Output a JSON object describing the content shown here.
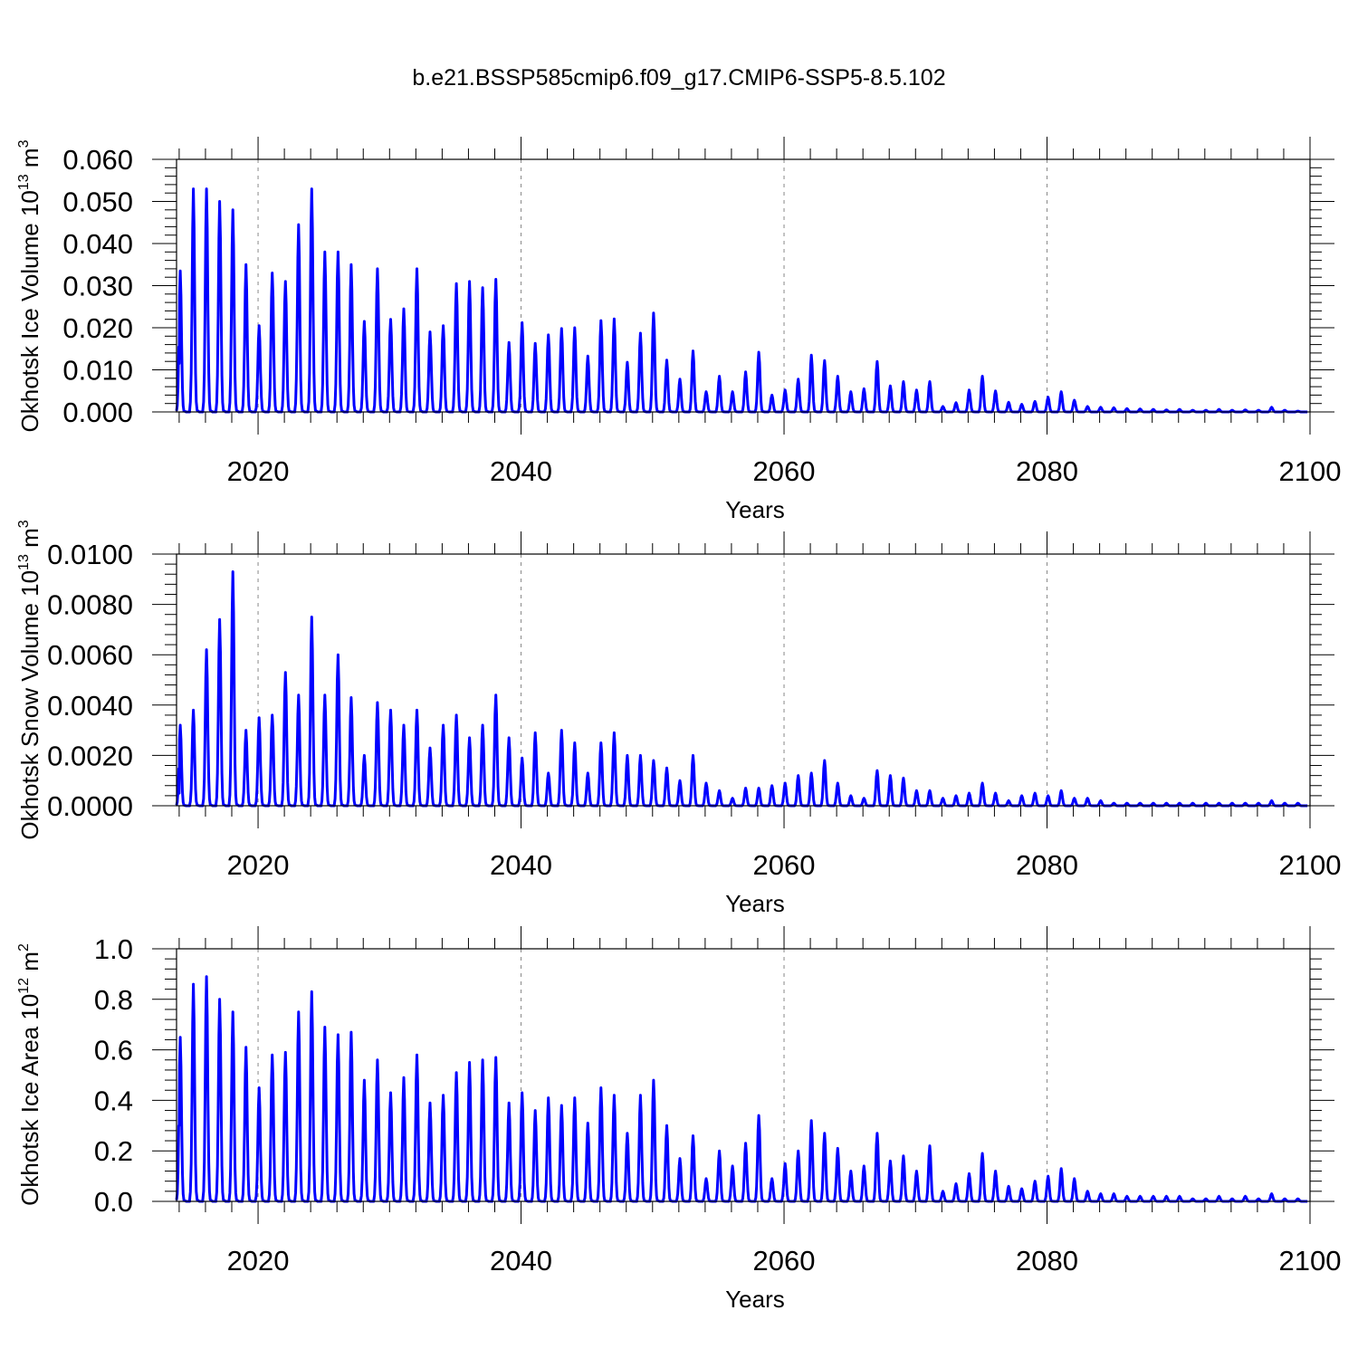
{
  "title": "b.e21.BSSP585cmip6.f09_g17.CMIP6-SSP5-8.5.102",
  "chart_data": [
    {
      "type": "line",
      "xlabel": "Years",
      "ylabel": "Okhotsk Ice Volume 10",
      "ylabel_exp": "13",
      "ylabel_unit": " m",
      "ylabel_unit_exp": "3",
      "xlim": [
        2013.8,
        2100
      ],
      "ylim": [
        0,
        0.06
      ],
      "xticks": [
        "2020",
        "2040",
        "2060",
        "2080",
        "2100"
      ],
      "yticks": [
        "0.000",
        "0.010",
        "0.020",
        "0.030",
        "0.040",
        "0.050",
        "0.060"
      ],
      "grid": "dashed vertical at major x ticks",
      "color": "#0000ff",
      "start_year": 2014,
      "start_value": 0.0115,
      "series": [
        {
          "peaks": [
            0.0335,
            0.053,
            0.053,
            0.05,
            0.048,
            0.035,
            0.0205,
            0.033,
            0.031,
            0.0445,
            0.053,
            0.038,
            0.038,
            0.035,
            0.0215,
            0.034,
            0.022,
            0.0245,
            0.034,
            0.019,
            0.0205,
            0.0305,
            0.031,
            0.0295,
            0.0315,
            0.0165,
            0.0212,
            0.0163,
            0.0183,
            0.0198,
            0.02,
            0.0133,
            0.0217,
            0.0221,
            0.0118,
            0.0187,
            0.0235,
            0.0123,
            0.0078,
            0.0145,
            0.0048,
            0.0085,
            0.0048,
            0.0095,
            0.0142,
            0.004,
            0.0052,
            0.0078,
            0.0135,
            0.0122,
            0.0085,
            0.0048,
            0.0055,
            0.012,
            0.0062,
            0.0072,
            0.0052,
            0.0072,
            0.0013,
            0.0022,
            0.0052,
            0.0085,
            0.005,
            0.0023,
            0.0018,
            0.0025,
            0.0035,
            0.0048,
            0.0028,
            0.0013,
            0.0011,
            0.001,
            0.0008,
            0.0007,
            0.0006,
            0.0005,
            0.0006,
            0.0004,
            0.0004,
            0.0006,
            0.0004,
            0.0005,
            0.0004,
            0.0011,
            0.0004,
            0.0002
          ]
        }
      ]
    },
    {
      "type": "line",
      "xlabel": "Years",
      "ylabel": "Okhotsk Snow Volume 10",
      "ylabel_exp": "13",
      "ylabel_unit": " m",
      "ylabel_unit_exp": "3",
      "xlim": [
        2013.8,
        2100
      ],
      "ylim": [
        0,
        0.01
      ],
      "xticks": [
        "2020",
        "2040",
        "2060",
        "2080",
        "2100"
      ],
      "yticks": [
        "0.0000",
        "0.0020",
        "0.0040",
        "0.0060",
        "0.0080",
        "0.0100"
      ],
      "grid": "dashed vertical at major x ticks",
      "color": "#0000ff",
      "start_year": 2014,
      "start_value": 0.0005,
      "series": [
        {
          "peaks": [
            0.0032,
            0.0038,
            0.0062,
            0.0074,
            0.0093,
            0.003,
            0.0035,
            0.0036,
            0.0053,
            0.0044,
            0.0075,
            0.0044,
            0.006,
            0.0043,
            0.002,
            0.0041,
            0.0038,
            0.0032,
            0.0038,
            0.0023,
            0.0032,
            0.0036,
            0.0027,
            0.0032,
            0.0044,
            0.0027,
            0.0019,
            0.0029,
            0.0013,
            0.003,
            0.0025,
            0.0013,
            0.0025,
            0.0029,
            0.002,
            0.002,
            0.0018,
            0.0015,
            0.001,
            0.002,
            0.0009,
            0.0006,
            0.0003,
            0.0007,
            0.0007,
            0.0008,
            0.0009,
            0.0012,
            0.0013,
            0.0018,
            0.0009,
            0.0004,
            0.0003,
            0.0014,
            0.0012,
            0.0011,
            0.0006,
            0.0006,
            0.0003,
            0.0004,
            0.0005,
            0.0009,
            0.0005,
            0.0002,
            0.0004,
            0.0005,
            0.0004,
            0.0006,
            0.0003,
            0.0003,
            0.0002,
            0.0001,
            0.0001,
            0.0001,
            0.0001,
            0.0001,
            0.0001,
            0.0001,
            0.0001,
            0.0001,
            0.0001,
            0.0001,
            0.0001,
            0.0002,
            0.0001,
            0.0001
          ]
        }
      ]
    },
    {
      "type": "line",
      "xlabel": "Years",
      "ylabel": "Okhotsk Ice Area 10",
      "ylabel_exp": "12",
      "ylabel_unit": " m",
      "ylabel_unit_exp": "2",
      "xlim": [
        2013.8,
        2100
      ],
      "ylim": [
        0,
        1.0
      ],
      "xticks": [
        "2020",
        "2040",
        "2060",
        "2080",
        "2100"
      ],
      "yticks": [
        "0.0",
        "0.2",
        "0.4",
        "0.6",
        "0.8",
        "1.0"
      ],
      "grid": "dashed vertical at major x ticks",
      "color": "#0000ff",
      "start_year": 2014,
      "start_value": 0.3,
      "series": [
        {
          "peaks": [
            0.65,
            0.86,
            0.89,
            0.8,
            0.75,
            0.61,
            0.45,
            0.58,
            0.59,
            0.75,
            0.83,
            0.69,
            0.66,
            0.67,
            0.48,
            0.56,
            0.43,
            0.49,
            0.58,
            0.39,
            0.42,
            0.51,
            0.55,
            0.56,
            0.57,
            0.39,
            0.43,
            0.36,
            0.41,
            0.38,
            0.41,
            0.31,
            0.45,
            0.42,
            0.27,
            0.42,
            0.48,
            0.3,
            0.17,
            0.26,
            0.09,
            0.2,
            0.14,
            0.23,
            0.34,
            0.09,
            0.15,
            0.2,
            0.32,
            0.27,
            0.21,
            0.12,
            0.14,
            0.27,
            0.16,
            0.18,
            0.12,
            0.22,
            0.04,
            0.07,
            0.11,
            0.19,
            0.12,
            0.06,
            0.05,
            0.08,
            0.1,
            0.13,
            0.09,
            0.04,
            0.03,
            0.03,
            0.02,
            0.02,
            0.02,
            0.02,
            0.02,
            0.01,
            0.01,
            0.02,
            0.01,
            0.02,
            0.01,
            0.03,
            0.01,
            0.01
          ]
        }
      ]
    }
  ]
}
